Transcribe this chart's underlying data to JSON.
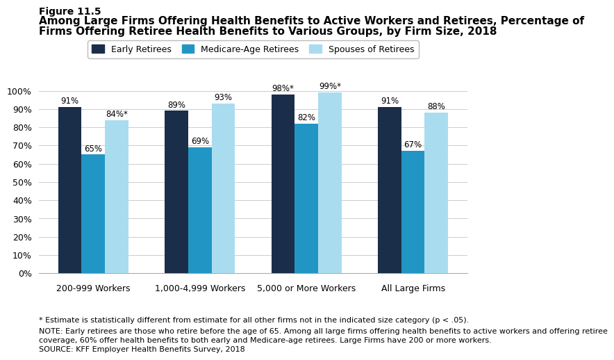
{
  "figure_label": "Figure 11.5",
  "title_line1": "Among Large Firms Offering Health Benefits to Active Workers and Retirees, Percentage of",
  "title_line2": "Firms Offering Retiree Health Benefits to Various Groups, by Firm Size, 2018",
  "categories": [
    "200-999 Workers",
    "1,000-4,999 Workers",
    "5,000 or More Workers",
    "All Large Firms"
  ],
  "series": [
    {
      "name": "Early Retirees",
      "color": "#1a2e4a",
      "values": [
        91,
        89,
        98,
        91
      ],
      "labels": [
        "91%",
        "89%",
        "98%*",
        "91%"
      ]
    },
    {
      "name": "Medicare-Age Retirees",
      "color": "#2196c4",
      "values": [
        65,
        69,
        82,
        67
      ],
      "labels": [
        "65%",
        "69%",
        "82%",
        "67%"
      ]
    },
    {
      "name": "Spouses of Retirees",
      "color": "#aadcf0",
      "values": [
        84,
        93,
        99,
        88
      ],
      "labels": [
        "84%*",
        "93%",
        "99%*",
        "88%"
      ]
    }
  ],
  "ylim": [
    0,
    100
  ],
  "yticks": [
    0,
    10,
    20,
    30,
    40,
    50,
    60,
    70,
    80,
    90,
    100
  ],
  "ytick_labels": [
    "0%",
    "10%",
    "20%",
    "30%",
    "40%",
    "50%",
    "60%",
    "70%",
    "80%",
    "90%",
    "100%"
  ],
  "bar_width": 0.22,
  "footnote1": "* Estimate is statistically different from estimate for all other firms not in the indicated size category (p < .05).",
  "footnote2": "NOTE: Early retirees are those who retire before the age of 65. Among all large firms offering health benefits to active workers and offering retiree",
  "footnote2b": "coverage, 60% offer health benefits to both early and Medicare-age retirees. Large Firms have 200 or more workers.",
  "footnote3": "SOURCE: KFF Employer Health Benefits Survey, 2018",
  "background_color": "#ffffff",
  "grid_color": "#cccccc",
  "label_fontsize": 8.5,
  "axis_fontsize": 9,
  "title_fontsize": 11,
  "legend_fontsize": 9,
  "footnote_fontsize": 8
}
